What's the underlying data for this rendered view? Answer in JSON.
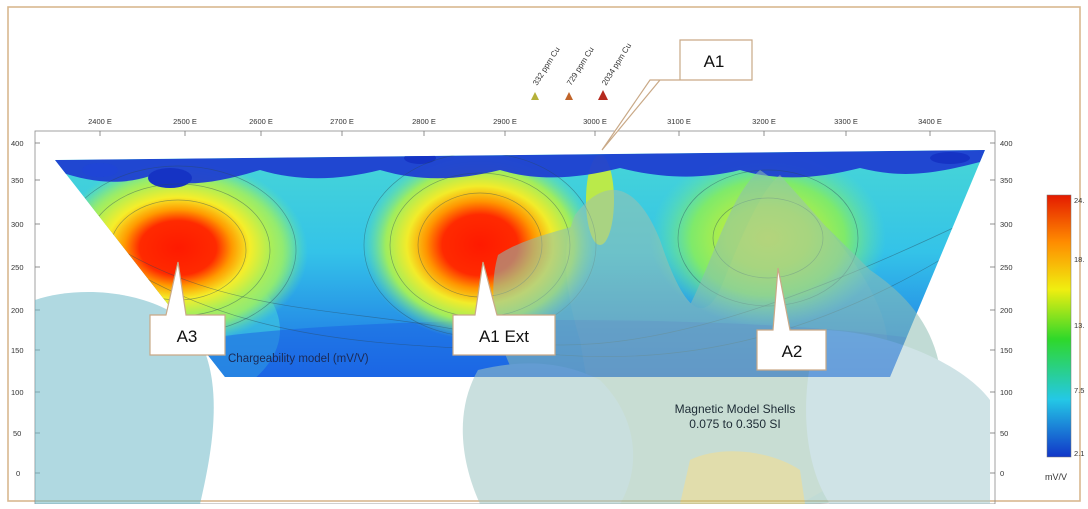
{
  "figure": {
    "x_ticks": [
      "2400 E",
      "2500 E",
      "2600 E",
      "2700 E",
      "2800 E",
      "2900 E",
      "3000 E",
      "3100 E",
      "3200 E",
      "3300 E",
      "3400 E"
    ],
    "y_ticks": [
      "400",
      "350",
      "300",
      "250",
      "200",
      "150",
      "100",
      "50",
      "0"
    ],
    "samples": [
      {
        "label": "332 ppm Cu",
        "color": "#b5b03a"
      },
      {
        "label": "729 ppm Cu",
        "color": "#c0642a"
      },
      {
        "label": "2034 ppm Cu",
        "color": "#b52a1e"
      }
    ],
    "callouts": {
      "a1": "A1",
      "a1_ext": "A1 Ext",
      "a2": "A2",
      "a3": "A3"
    },
    "model_label": "Chargeability model (mV/V)",
    "magnetic_label_line1": "Magnetic Model Shells",
    "magnetic_label_line2": "0.075 to 0.350 SI",
    "colorbar": {
      "ticks": [
        "24.",
        "18.",
        "13.",
        "7.5",
        "2.1"
      ],
      "unit": "mV/V"
    }
  }
}
